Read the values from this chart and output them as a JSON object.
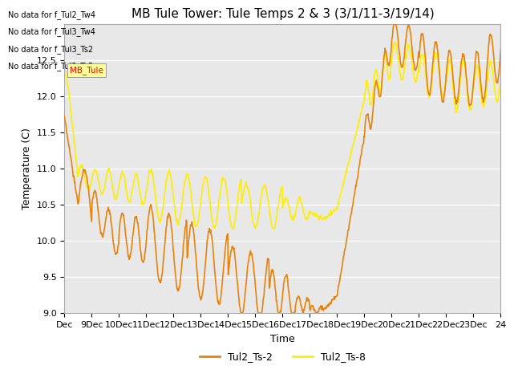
{
  "title": "MB Tule Tower: Tule Temps 2 & 3 (3/1/11-3/19/14)",
  "xlabel": "Time",
  "ylabel": "Temperature (C)",
  "ylim": [
    9.0,
    13.0
  ],
  "yticks": [
    9.0,
    9.5,
    10.0,
    10.5,
    11.0,
    11.5,
    12.0,
    12.5
  ],
  "xtick_labels": [
    "Dec",
    "9Dec",
    "10Dec",
    "11Dec",
    "12Dec",
    "13Dec",
    "14Dec",
    "15Dec",
    "16Dec",
    "17Dec",
    "18Dec",
    "19Dec",
    "20Dec",
    "21Dec",
    "22Dec",
    "23Dec",
    "24"
  ],
  "color_ts2": "#E8820A",
  "color_ts8": "#FFEE00",
  "legend_labels": [
    "Tul2_Ts-2",
    "Tul2_Ts-8"
  ],
  "no_data_texts": [
    "No data for f_Tul2_Tw4",
    "No data for f_Tul3_Tw4",
    "No data for f_Tul3_Ts2",
    "No data for f_Tul3_Ts5"
  ],
  "tooltip_text": "MB_Tule",
  "background_color": "#E8E8E8",
  "fig_background": "#FFFFFF",
  "grid_color": "#FFFFFF",
  "title_fontsize": 11,
  "axis_fontsize": 9,
  "tick_fontsize": 8,
  "linewidth": 1.2
}
